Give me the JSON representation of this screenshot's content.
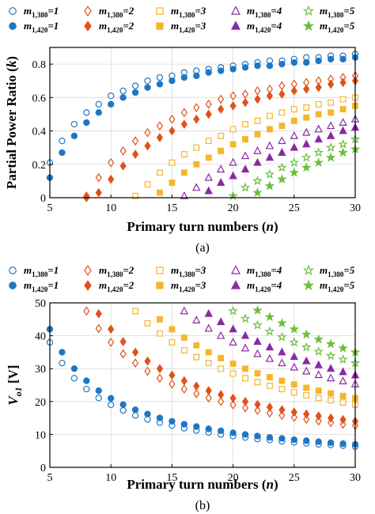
{
  "chart_data": [
    {
      "type": "scatter",
      "panel_label": "(a)",
      "xlabel": "Primary turn numbers (n)",
      "ylabel": "Partial Power Ratio (k)",
      "xlim": [
        5,
        30
      ],
      "ylim": [
        0,
        0.9
      ],
      "xticks": [
        "5",
        "10",
        "15",
        "20",
        "25",
        "30"
      ],
      "yticks": [
        "0",
        "0.2",
        "0.4",
        "0.6",
        "0.8"
      ],
      "grid": true,
      "legend_position": "top",
      "series": [
        {
          "name": "m1,380=1",
          "base": "m",
          "sub": "1,380",
          "val": "=1",
          "marker": "circle",
          "filled": false,
          "color": "#1f77c4",
          "x": [
            5,
            6,
            7,
            8,
            9,
            10,
            11,
            12,
            13,
            14,
            15,
            16,
            17,
            18,
            19,
            20,
            21,
            22,
            23,
            24,
            25,
            26,
            27,
            28,
            29,
            30
          ],
          "y": [
            0.21,
            0.34,
            0.44,
            0.51,
            0.56,
            0.61,
            0.64,
            0.67,
            0.7,
            0.72,
            0.73,
            0.75,
            0.76,
            0.77,
            0.78,
            0.79,
            0.8,
            0.81,
            0.82,
            0.82,
            0.83,
            0.84,
            0.84,
            0.85,
            0.85,
            0.86
          ]
        },
        {
          "name": "m1,420=1",
          "base": "m",
          "sub": "1,420",
          "val": "=1",
          "marker": "circle",
          "filled": true,
          "color": "#1f77c4",
          "x": [
            5,
            6,
            7,
            8,
            9,
            10,
            11,
            12,
            13,
            14,
            15,
            16,
            17,
            18,
            19,
            20,
            21,
            22,
            23,
            24,
            25,
            26,
            27,
            28,
            29,
            30
          ],
          "y": [
            0.12,
            0.27,
            0.37,
            0.45,
            0.51,
            0.56,
            0.6,
            0.63,
            0.66,
            0.68,
            0.7,
            0.72,
            0.73,
            0.75,
            0.76,
            0.77,
            0.78,
            0.79,
            0.79,
            0.8,
            0.81,
            0.81,
            0.82,
            0.83,
            0.83,
            0.84
          ]
        },
        {
          "name": "m1,380=2",
          "base": "m",
          "sub": "1,380",
          "val": "=2",
          "marker": "diamond",
          "filled": false,
          "color": "#e0521a",
          "x": [
            8,
            9,
            10,
            11,
            12,
            13,
            14,
            15,
            16,
            17,
            18,
            19,
            20,
            21,
            22,
            23,
            24,
            25,
            26,
            27,
            28,
            29,
            30
          ],
          "y": [
            0.01,
            0.12,
            0.21,
            0.28,
            0.34,
            0.39,
            0.43,
            0.47,
            0.51,
            0.54,
            0.56,
            0.59,
            0.61,
            0.62,
            0.64,
            0.65,
            0.67,
            0.68,
            0.69,
            0.7,
            0.71,
            0.72,
            0.73
          ]
        },
        {
          "name": "m1,420=2",
          "base": "m",
          "sub": "1,420",
          "val": "=2",
          "marker": "diamond",
          "filled": true,
          "color": "#e0521a",
          "x": [
            8,
            9,
            10,
            11,
            12,
            13,
            14,
            15,
            16,
            17,
            18,
            19,
            20,
            21,
            22,
            23,
            24,
            25,
            26,
            27,
            28,
            29,
            30
          ],
          "y": [
            0.0,
            0.03,
            0.11,
            0.19,
            0.26,
            0.31,
            0.36,
            0.4,
            0.44,
            0.47,
            0.5,
            0.53,
            0.55,
            0.57,
            0.59,
            0.61,
            0.62,
            0.64,
            0.65,
            0.66,
            0.68,
            0.69,
            0.7
          ]
        },
        {
          "name": "m1,380=3",
          "base": "m",
          "sub": "1,380",
          "val": "=3",
          "marker": "square",
          "filled": false,
          "color": "#f5b62b",
          "x": [
            12,
            13,
            14,
            15,
            16,
            17,
            18,
            19,
            20,
            21,
            22,
            23,
            24,
            25,
            26,
            27,
            28,
            29,
            30
          ],
          "y": [
            0.01,
            0.08,
            0.15,
            0.21,
            0.26,
            0.3,
            0.34,
            0.37,
            0.41,
            0.44,
            0.46,
            0.49,
            0.51,
            0.53,
            0.54,
            0.56,
            0.57,
            0.59,
            0.6
          ]
        },
        {
          "name": "m1,420=3",
          "base": "m",
          "sub": "1,420",
          "val": "=3",
          "marker": "square",
          "filled": true,
          "color": "#f5b62b",
          "x": [
            14,
            15,
            16,
            17,
            18,
            19,
            20,
            21,
            22,
            23,
            24,
            25,
            26,
            27,
            28,
            29,
            30
          ],
          "y": [
            0.03,
            0.09,
            0.15,
            0.2,
            0.24,
            0.28,
            0.32,
            0.35,
            0.38,
            0.41,
            0.43,
            0.46,
            0.48,
            0.5,
            0.51,
            0.53,
            0.55
          ]
        },
        {
          "name": "m1,380=4",
          "base": "m",
          "sub": "1,380",
          "val": "=4",
          "marker": "triangle",
          "filled": false,
          "color": "#8a2aa3",
          "x": [
            16,
            17,
            18,
            19,
            20,
            21,
            22,
            23,
            24,
            25,
            26,
            27,
            28,
            29,
            30
          ],
          "y": [
            0.01,
            0.06,
            0.12,
            0.17,
            0.21,
            0.25,
            0.28,
            0.31,
            0.34,
            0.37,
            0.39,
            0.41,
            0.43,
            0.45,
            0.47
          ]
        },
        {
          "name": "m1,420=4",
          "base": "m",
          "sub": "1,420",
          "val": "=4",
          "marker": "triangle",
          "filled": true,
          "color": "#8a2aa3",
          "x": [
            18,
            19,
            20,
            21,
            22,
            23,
            24,
            25,
            26,
            27,
            28,
            29,
            30
          ],
          "y": [
            0.04,
            0.09,
            0.13,
            0.17,
            0.21,
            0.24,
            0.27,
            0.3,
            0.32,
            0.35,
            0.37,
            0.4,
            0.42
          ]
        },
        {
          "name": "m1,380=5",
          "base": "m",
          "sub": "1,380",
          "val": "=5",
          "marker": "star",
          "filled": false,
          "color": "#6cbf3c",
          "x": [
            20,
            21,
            22,
            23,
            24,
            25,
            26,
            27,
            28,
            29,
            30
          ],
          "y": [
            0.01,
            0.06,
            0.1,
            0.14,
            0.18,
            0.21,
            0.24,
            0.27,
            0.3,
            0.32,
            0.35
          ]
        },
        {
          "name": "m1,420=5",
          "base": "m",
          "sub": "1,420",
          "val": "=5",
          "marker": "star",
          "filled": true,
          "color": "#6cbf3c",
          "x": [
            22,
            23,
            24,
            25,
            26,
            27,
            28,
            29,
            30
          ],
          "y": [
            0.03,
            0.07,
            0.11,
            0.15,
            0.18,
            0.21,
            0.24,
            0.27,
            0.29
          ]
        }
      ]
    },
    {
      "type": "scatter",
      "panel_label": "(b)",
      "xlabel": "Primary turn numbers (n)",
      "ylabel": "Vo1 [V]",
      "ylabel_base": "V",
      "ylabel_sub": "o1",
      "ylabel_unit": " [V]",
      "xlim": [
        5,
        30
      ],
      "ylim": [
        0,
        50
      ],
      "xticks": [
        "5",
        "10",
        "15",
        "20",
        "25",
        "30"
      ],
      "yticks": [
        "0",
        "10",
        "20",
        "30",
        "40",
        "50"
      ],
      "grid": true,
      "legend_position": "top",
      "series": [
        {
          "name": "m1,380=1",
          "base": "m",
          "sub": "1,380",
          "val": "=1",
          "marker": "circle",
          "filled": false,
          "color": "#1f77c4",
          "x": [
            5,
            6,
            7,
            8,
            9,
            10,
            11,
            12,
            13,
            14,
            15,
            16,
            17,
            18,
            19,
            20,
            21,
            22,
            23,
            24,
            25,
            26,
            27,
            28,
            29,
            30
          ],
          "y": [
            38.0,
            31.7,
            27.1,
            23.8,
            21.1,
            19.0,
            17.3,
            15.8,
            14.6,
            13.6,
            12.7,
            11.9,
            11.2,
            10.6,
            10.0,
            9.5,
            9.1,
            8.6,
            8.3,
            7.9,
            7.6,
            7.3,
            7.0,
            6.8,
            6.6,
            6.3
          ]
        },
        {
          "name": "m1,420=1",
          "base": "m",
          "sub": "1,420",
          "val": "=1",
          "marker": "circle",
          "filled": true,
          "color": "#1f77c4",
          "x": [
            5,
            6,
            7,
            8,
            9,
            10,
            11,
            12,
            13,
            14,
            15,
            16,
            17,
            18,
            19,
            20,
            21,
            22,
            23,
            24,
            25,
            26,
            27,
            28,
            29,
            30
          ],
          "y": [
            42.0,
            35.0,
            30.0,
            26.3,
            23.3,
            21.0,
            19.1,
            17.5,
            16.2,
            15.0,
            14.0,
            13.1,
            12.4,
            11.7,
            11.1,
            10.5,
            10.0,
            9.5,
            9.1,
            8.8,
            8.4,
            8.1,
            7.8,
            7.5,
            7.2,
            7.0
          ]
        },
        {
          "name": "m1,380=2",
          "base": "m",
          "sub": "1,380",
          "val": "=2",
          "marker": "diamond",
          "filled": false,
          "color": "#e0521a",
          "x": [
            8,
            9,
            10,
            11,
            12,
            13,
            14,
            15,
            16,
            17,
            18,
            19,
            20,
            21,
            22,
            23,
            24,
            25,
            26,
            27,
            28,
            29,
            30
          ],
          "y": [
            47.5,
            42.2,
            38.0,
            34.5,
            31.7,
            29.2,
            27.1,
            25.3,
            23.8,
            22.4,
            21.1,
            20.0,
            19.0,
            18.1,
            17.3,
            16.5,
            15.8,
            15.2,
            14.6,
            14.1,
            13.6,
            13.1,
            12.7
          ]
        },
        {
          "name": "m1,420=2",
          "base": "m",
          "sub": "1,420",
          "val": "=2",
          "marker": "diamond",
          "filled": true,
          "color": "#e0521a",
          "x": [
            9,
            10,
            11,
            12,
            13,
            14,
            15,
            16,
            17,
            18,
            19,
            20,
            21,
            22,
            23,
            24,
            25,
            26,
            27,
            28,
            29,
            30
          ],
          "y": [
            46.7,
            42.0,
            38.2,
            35.0,
            32.3,
            30.0,
            28.0,
            26.3,
            24.7,
            23.3,
            22.1,
            21.0,
            20.0,
            19.1,
            18.3,
            17.5,
            16.8,
            16.2,
            15.6,
            15.0,
            14.5,
            14.0
          ]
        },
        {
          "name": "m1,380=3",
          "base": "m",
          "sub": "1,380",
          "val": "=3",
          "marker": "square",
          "filled": false,
          "color": "#f5b62b",
          "x": [
            12,
            13,
            14,
            15,
            16,
            17,
            18,
            19,
            20,
            21,
            22,
            23,
            24,
            25,
            26,
            27,
            28,
            29,
            30
          ],
          "y": [
            47.5,
            43.8,
            40.7,
            38.0,
            35.6,
            33.5,
            31.7,
            30.0,
            28.5,
            27.1,
            25.9,
            24.8,
            23.8,
            22.8,
            21.9,
            21.1,
            20.4,
            19.7,
            19.0
          ]
        },
        {
          "name": "m1,420=3",
          "base": "m",
          "sub": "1,420",
          "val": "=3",
          "marker": "square",
          "filled": true,
          "color": "#f5b62b",
          "x": [
            14,
            15,
            16,
            17,
            18,
            19,
            20,
            21,
            22,
            23,
            24,
            25,
            26,
            27,
            28,
            29,
            30
          ],
          "y": [
            45.0,
            42.0,
            39.4,
            37.1,
            35.0,
            33.2,
            31.5,
            30.0,
            28.6,
            27.4,
            26.3,
            25.2,
            24.2,
            23.3,
            22.5,
            21.7,
            21.0
          ]
        },
        {
          "name": "m1,380=4",
          "base": "m",
          "sub": "1,380",
          "val": "=4",
          "marker": "triangle",
          "filled": false,
          "color": "#8a2aa3",
          "x": [
            16,
            17,
            18,
            19,
            20,
            21,
            22,
            23,
            24,
            25,
            26,
            27,
            28,
            29,
            30
          ],
          "y": [
            47.5,
            44.7,
            42.2,
            40.0,
            38.0,
            36.2,
            34.5,
            33.0,
            31.7,
            30.4,
            29.2,
            28.1,
            27.1,
            26.2,
            25.3
          ]
        },
        {
          "name": "m1,420=4",
          "base": "m",
          "sub": "1,420",
          "val": "=4",
          "marker": "triangle",
          "filled": true,
          "color": "#8a2aa3",
          "x": [
            18,
            19,
            20,
            21,
            22,
            23,
            24,
            25,
            26,
            27,
            28,
            29,
            30
          ],
          "y": [
            46.7,
            44.2,
            42.0,
            40.0,
            38.2,
            36.5,
            35.0,
            33.6,
            32.3,
            31.1,
            30.0,
            29.0,
            28.0
          ]
        },
        {
          "name": "m1,380=5",
          "base": "m",
          "sub": "1,380",
          "val": "=5",
          "marker": "star",
          "filled": false,
          "color": "#6cbf3c",
          "x": [
            20,
            21,
            22,
            23,
            24,
            25,
            26,
            27,
            28,
            29,
            30
          ],
          "y": [
            47.5,
            45.2,
            43.2,
            41.3,
            39.6,
            38.0,
            36.5,
            35.2,
            33.9,
            32.8,
            31.7
          ]
        },
        {
          "name": "m1,420=5",
          "base": "m",
          "sub": "1,420",
          "val": "=5",
          "marker": "star",
          "filled": true,
          "color": "#6cbf3c",
          "x": [
            22,
            23,
            24,
            25,
            26,
            27,
            28,
            29,
            30
          ],
          "y": [
            47.7,
            45.7,
            43.8,
            42.0,
            40.4,
            38.9,
            37.5,
            36.2,
            35.0
          ]
        }
      ]
    }
  ]
}
